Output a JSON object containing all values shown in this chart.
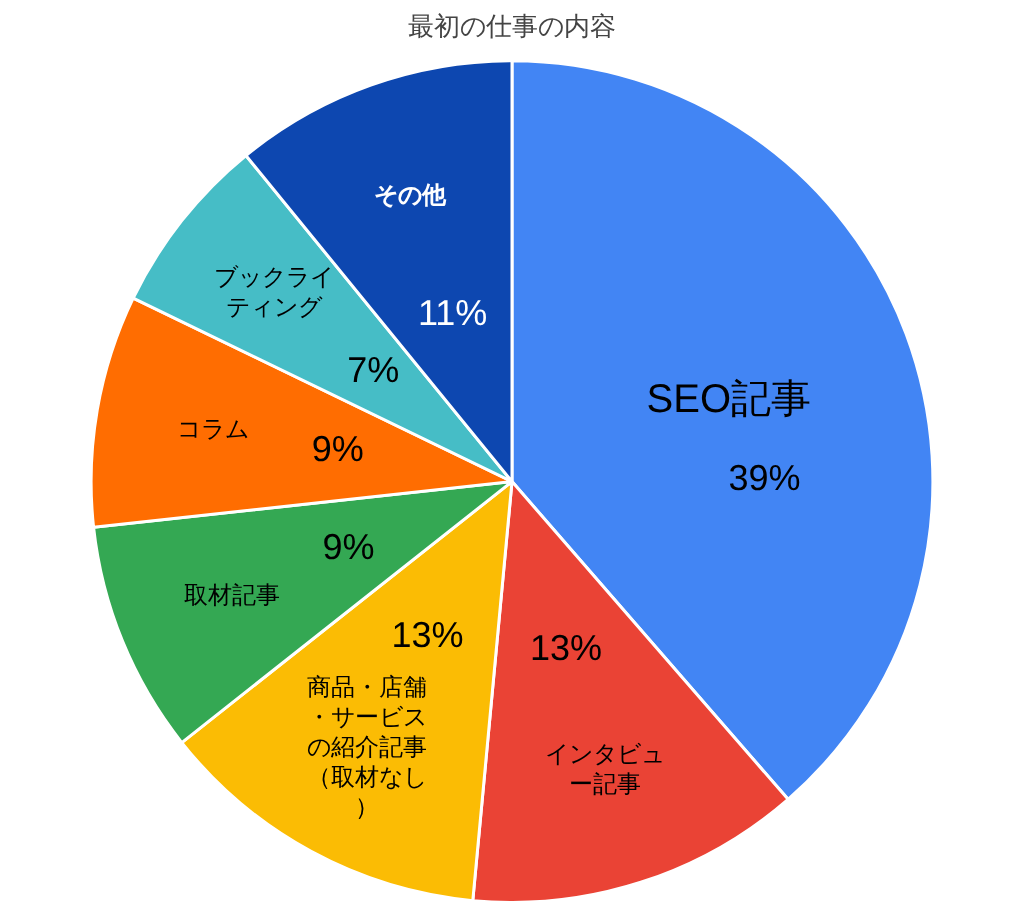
{
  "chart_data": {
    "type": "pie",
    "title": "最初の仕事の内容",
    "categories": [
      "SEO記事",
      "インタビュー記事",
      "商品・店舗・サービスの紹介記事（取材なし）",
      "取材記事",
      "コラム",
      "ブックライティング",
      "その他"
    ],
    "values": [
      39,
      13,
      13,
      9,
      9,
      7,
      11
    ],
    "value_labels": [
      "39%",
      "13%",
      "13%",
      "9%",
      "9%",
      "7%",
      "11%"
    ],
    "colors": [
      "#4285f4",
      "#ea4335",
      "#fbbc04",
      "#34a853",
      "#ff6d01",
      "#46bdc6",
      "#0d47b0"
    ],
    "legend": false
  }
}
